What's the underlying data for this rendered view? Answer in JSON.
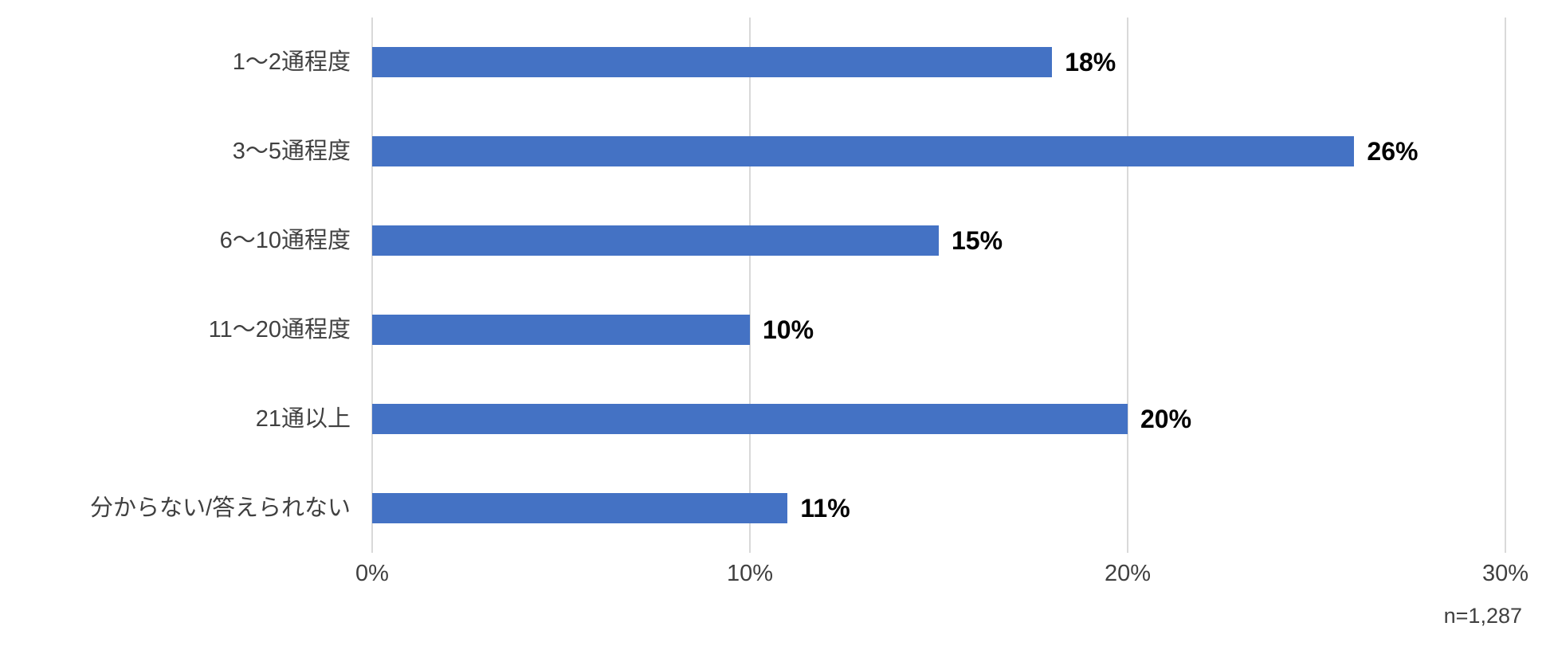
{
  "chart_data": {
    "type": "bar",
    "orientation": "horizontal",
    "title": "",
    "categories": [
      "1〜2通程度",
      "3〜5通程度",
      "6〜10通程度",
      "11〜20通程度",
      "21通以上",
      "分からない/答えられない"
    ],
    "values": [
      18,
      26,
      15,
      10,
      20,
      11
    ],
    "value_labels": [
      "18%",
      "26%",
      "15%",
      "10%",
      "20%",
      "11%"
    ],
    "xlabel": "",
    "ylabel": "",
    "xlim": [
      0,
      30
    ],
    "x_tick_labels": [
      "0%",
      "10%",
      "20%",
      "30%"
    ],
    "x_tick_positions": [
      0,
      10,
      20,
      30
    ],
    "grid": "vertical-gridlines-on",
    "legend": "none",
    "note": "n=1,287",
    "colors": {
      "bar": "#4472C4",
      "gridline": "#D9D9D9",
      "axis_text": "#404040",
      "value_label_text": "#000000",
      "background": "#FFFFFF"
    }
  }
}
